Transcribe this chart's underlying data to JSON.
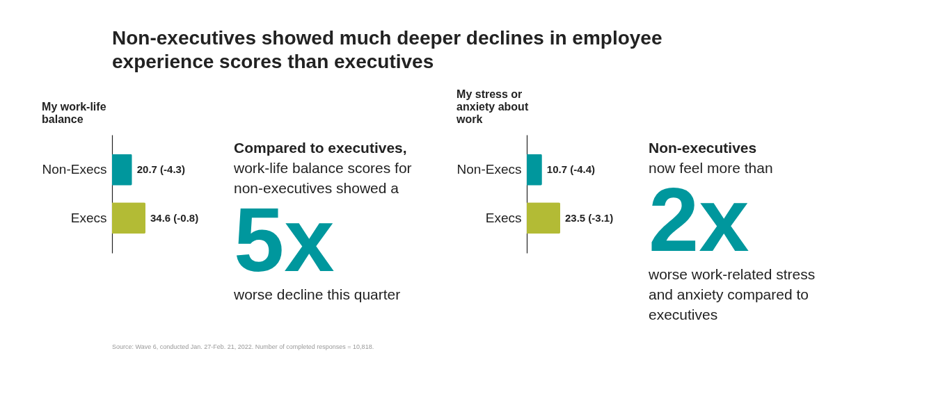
{
  "chart_data": [
    {
      "type": "other",
      "title": "Non-executives showed much deeper declines in employee experience scores than executives"
    },
    {
      "type": "bar",
      "orientation": "horizontal",
      "title": "My work-life balance",
      "categories": [
        "Non-Execs",
        "Execs"
      ],
      "values": [
        20.7,
        34.6
      ],
      "colors": [
        "#00979d",
        "#b3bb35"
      ],
      "value_labels": [
        "20.7 (-4.3)",
        "34.6 (-0.8)"
      ]
    },
    {
      "type": "other",
      "title": "Compared to executives,",
      "subtitle": "work-life balance scores for non-executives showed a",
      "annotations": [
        "5x",
        "worse decline this quarter"
      ]
    },
    {
      "type": "bar",
      "orientation": "horizontal",
      "title": "My stress or anxiety about work",
      "categories": [
        "Non-Execs",
        "Execs"
      ],
      "values": [
        10.7,
        23.5
      ],
      "colors": [
        "#00979d",
        "#b3bb35"
      ],
      "value_labels": [
        "10.7 (-4.4)",
        "23.5 (-3.1)"
      ]
    },
    {
      "type": "other",
      "title": "Non-executives",
      "subtitle": "now feel more than",
      "annotations": [
        "2x",
        "worse work-related stress and anxiety compared to executives"
      ]
    },
    {
      "type": "other",
      "annotations": [
        "Source: Wave 6, conducted Jan. 27-Feb. 21, 2022. Number of completed responses = 10,818."
      ]
    }
  ]
}
